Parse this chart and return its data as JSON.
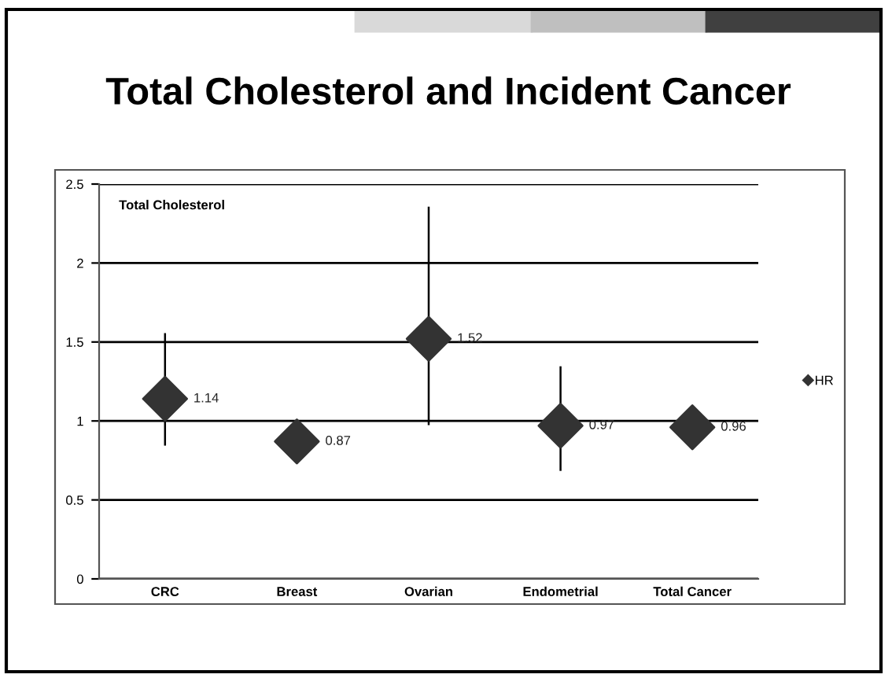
{
  "chart_data": {
    "type": "scatter",
    "title": "Total Cholesterol and Incident Cancer",
    "annotations": [
      "Total Cholesterol"
    ],
    "categories": [
      "CRC",
      "Breast",
      "Ovarian",
      "Endometrial",
      "Total Cancer"
    ],
    "series": [
      {
        "name": "HR",
        "color": "#333333",
        "values": [
          1.14,
          0.87,
          1.52,
          0.97,
          0.96
        ],
        "errors": [
          [
            0.85,
            1.55
          ],
          [
            0.75,
            1.0
          ],
          [
            0.98,
            2.35
          ],
          [
            0.69,
            1.34
          ],
          null
        ]
      }
    ],
    "data_labels": true,
    "marker": "diamond",
    "ylim": [
      0,
      2.5
    ],
    "yticks": [
      0,
      0.5,
      1,
      1.5,
      2,
      2.5
    ],
    "grid": "y",
    "legend": "right"
  }
}
